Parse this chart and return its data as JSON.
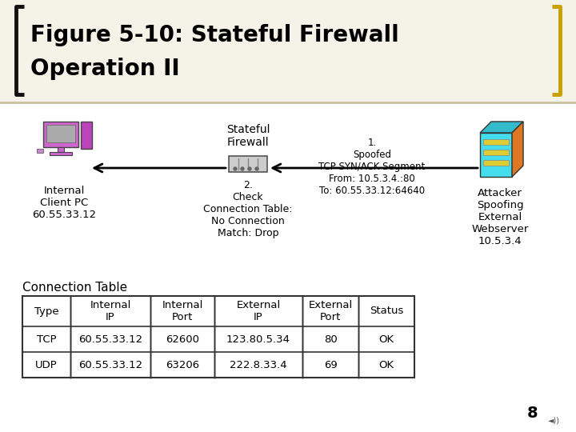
{
  "title_line1": "Figure 5-10: Stateful Firewall",
  "title_line2": "Operation II",
  "title_fontsize": 20,
  "title_color": "#000000",
  "bg_color": "#ffffff",
  "header_bg": "#f5f2e8",
  "bracket_color": "#c8a000",
  "bracket_dark": "#111111",
  "sep_line_color": "#c8c0a0",
  "firewall_label": "Stateful\nFirewall",
  "internal_label": "Internal\nClient PC\n60.55.33.12",
  "attacker_label": "Attacker\nSpoofing\nExternal\nWebserver\n10.5.3.4",
  "step2_label": "2.\nCheck\nConnection Table:\nNo Connection\nMatch: Drop",
  "step1_label": "1.\nSpoofed\nTCP SYN/ACK Segment\nFrom: 10.5.3.4.:80\nTo: 60.55.33.12:64640",
  "connection_table_label": "Connection Table",
  "table_headers": [
    "Type",
    "Internal\nIP",
    "Internal\nPort",
    "External\nIP",
    "External\nPort",
    "Status"
  ],
  "table_rows": [
    [
      "TCP",
      "60.55.33.12",
      "62600",
      "123.80.5.34",
      "80",
      "OK"
    ],
    [
      "UDP",
      "60.55.33.12",
      "63206",
      "222.8.33.4",
      "69",
      "OK"
    ]
  ],
  "slide_number": "8"
}
